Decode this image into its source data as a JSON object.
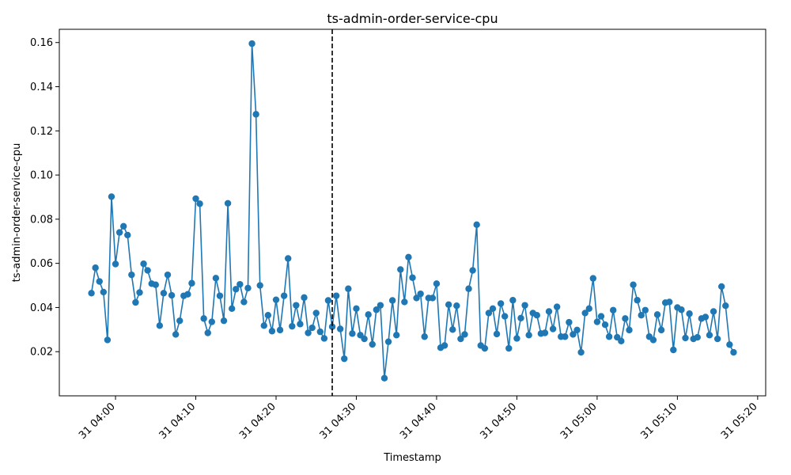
{
  "chart_data": {
    "type": "line",
    "title": "ts-admin-order-service-cpu",
    "xlabel": "Timestamp",
    "ylabel": "ts-admin-order-service-cpu",
    "grid": false,
    "marker": "circle",
    "line_color": "#1f77b4",
    "marker_color": "#1f77b4",
    "x_start": "31 03:57",
    "x_step_minutes": 0.5,
    "x_ticks": [
      "31 04:00",
      "31 04:10",
      "31 04:20",
      "31 04:30",
      "31 04:40",
      "31 04:50",
      "31 05:00",
      "31 05:10",
      "31 05:20"
    ],
    "y_ticks": [
      "0.02",
      "0.04",
      "0.06",
      "0.08",
      "0.10",
      "0.12",
      "0.14",
      "0.16"
    ],
    "xlim": [
      "31 03:53",
      "31 05:21"
    ],
    "ylim": [
      0.0,
      0.166
    ],
    "vline": {
      "x": "31 04:27",
      "style": "dashed",
      "color": "#000000"
    },
    "series": [
      {
        "values": [
          0.0465,
          0.058,
          0.0518,
          0.047,
          0.0253,
          0.0902,
          0.0597,
          0.074,
          0.0768,
          0.0728,
          0.0548,
          0.0423,
          0.0468,
          0.0598,
          0.0568,
          0.0508,
          0.0503,
          0.0318,
          0.0465,
          0.0548,
          0.0455,
          0.0278,
          0.034,
          0.0453,
          0.046,
          0.051,
          0.0893,
          0.087,
          0.035,
          0.0285,
          0.0335,
          0.0533,
          0.0453,
          0.034,
          0.0872,
          0.0395,
          0.0483,
          0.0505,
          0.0425,
          0.0488,
          0.1595,
          0.1275,
          0.05,
          0.0318,
          0.0365,
          0.0293,
          0.0435,
          0.0298,
          0.0453,
          0.0622,
          0.0315,
          0.041,
          0.0325,
          0.0445,
          0.0285,
          0.0308,
          0.0375,
          0.029,
          0.026,
          0.0432,
          0.0313,
          0.0453,
          0.0303,
          0.0168,
          0.0485,
          0.0282,
          0.0395,
          0.0275,
          0.0258,
          0.0368,
          0.0233,
          0.039,
          0.041,
          0.008,
          0.0245,
          0.0432,
          0.0275,
          0.0572,
          0.0425,
          0.0628,
          0.0535,
          0.0443,
          0.0462,
          0.0268,
          0.0443,
          0.0443,
          0.0508,
          0.0218,
          0.0228,
          0.0413,
          0.03,
          0.0408,
          0.0258,
          0.0278,
          0.0485,
          0.0568,
          0.0775,
          0.0228,
          0.0215,
          0.0375,
          0.0395,
          0.028,
          0.0418,
          0.036,
          0.0215,
          0.0433,
          0.026,
          0.0352,
          0.041,
          0.0275,
          0.0375,
          0.0365,
          0.0282,
          0.0285,
          0.0382,
          0.0303,
          0.0403,
          0.0268,
          0.0268,
          0.0333,
          0.0278,
          0.0298,
          0.0197,
          0.0375,
          0.0395,
          0.0532,
          0.0335,
          0.036,
          0.0322,
          0.0268,
          0.0388,
          0.0265,
          0.0248,
          0.035,
          0.0298,
          0.0503,
          0.0433,
          0.0365,
          0.0388,
          0.0268,
          0.0253,
          0.0368,
          0.0298,
          0.0422,
          0.0425,
          0.0208,
          0.04,
          0.039,
          0.0262,
          0.0372,
          0.0258,
          0.0265,
          0.035,
          0.0357,
          0.0275,
          0.0382,
          0.0258,
          0.0495,
          0.0408,
          0.0232,
          0.0197
        ]
      }
    ]
  }
}
